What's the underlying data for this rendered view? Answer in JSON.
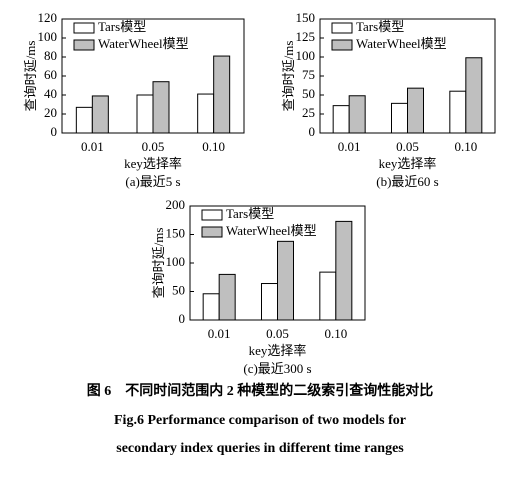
{
  "chart_data": [
    {
      "type": "bar",
      "subtitle": "(a)最近5 s",
      "xlabel": "key选择率",
      "ylabel": "查询时延/ms",
      "categories": [
        "0.01",
        "0.05",
        "0.10"
      ],
      "series": [
        {
          "name": "Tars模型",
          "color": "#ffffff",
          "values": [
            27,
            40,
            41
          ]
        },
        {
          "name": "WaterWheel模型",
          "color": "#bfbfbf",
          "values": [
            39,
            54,
            81
          ]
        }
      ],
      "ylim": [
        0,
        120
      ],
      "yticks": [
        0,
        20,
        40,
        60,
        80,
        100,
        120
      ],
      "legend": "upper left"
    },
    {
      "type": "bar",
      "subtitle": "(b)最近60 s",
      "xlabel": "key选择率",
      "ylabel": "查询时延/ms",
      "categories": [
        "0.01",
        "0.05",
        "0.10"
      ],
      "series": [
        {
          "name": "Tars模型",
          "color": "#ffffff",
          "values": [
            36,
            39,
            55
          ]
        },
        {
          "name": "WaterWheel模型",
          "color": "#bfbfbf",
          "values": [
            49,
            59,
            99
          ]
        }
      ],
      "ylim": [
        0,
        150
      ],
      "yticks": [
        0,
        25,
        50,
        75,
        100,
        125,
        150
      ],
      "legend": "upper left"
    },
    {
      "type": "bar",
      "subtitle": "(c)最近300 s",
      "xlabel": "key选择率",
      "ylabel": "查询时延/ms",
      "categories": [
        "0.01",
        "0.05",
        "0.10"
      ],
      "series": [
        {
          "name": "Tars模型",
          "color": "#ffffff",
          "values": [
            46,
            64,
            84
          ]
        },
        {
          "name": "WaterWheel模型",
          "color": "#bfbfbf",
          "values": [
            80,
            138,
            173
          ]
        }
      ],
      "ylim": [
        0,
        200
      ],
      "yticks": [
        0,
        50,
        100,
        150,
        200
      ],
      "legend": "upper left"
    }
  ],
  "figure_caption": {
    "cn": "图 6　不同时间范围内 2 种模型的二级索引查询性能对比",
    "en": [
      "Fig.6    Performance comparison of two models for",
      "secondary index queries in different time ranges"
    ]
  }
}
